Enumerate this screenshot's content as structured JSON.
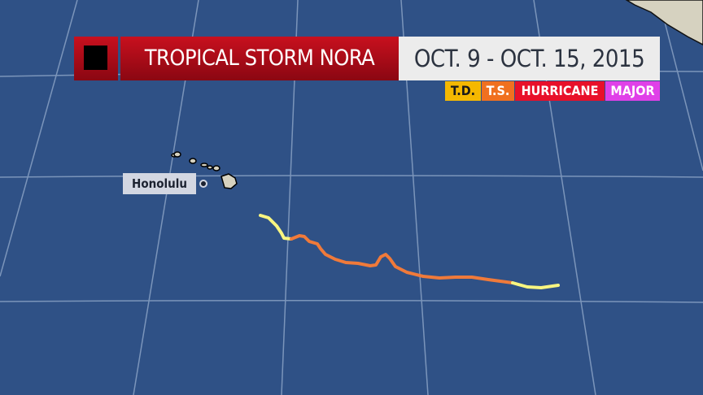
{
  "header": {
    "title": "TROPICAL STORM NORA",
    "dates": "OCT. 9 - OCT. 15, 2015"
  },
  "legend": [
    {
      "label": "T.D.",
      "color": "#f5b800",
      "text_color": "#1a1a1a"
    },
    {
      "label": "T.S.",
      "color": "#f07020",
      "text_color": "#ffffff"
    },
    {
      "label": "HURRICANE",
      "color": "#e8102a",
      "text_color": "#ffffff"
    },
    {
      "label": "MAJOR",
      "color": "#e040e8",
      "text_color": "#ffffff"
    }
  ],
  "city": {
    "name": "Honolulu"
  },
  "colors": {
    "ocean": "#2f5186",
    "land": "#d6d2c0",
    "grid": "#8fa6c8",
    "td_track": "#f8f580",
    "ts_track": "#f07a3a"
  }
}
